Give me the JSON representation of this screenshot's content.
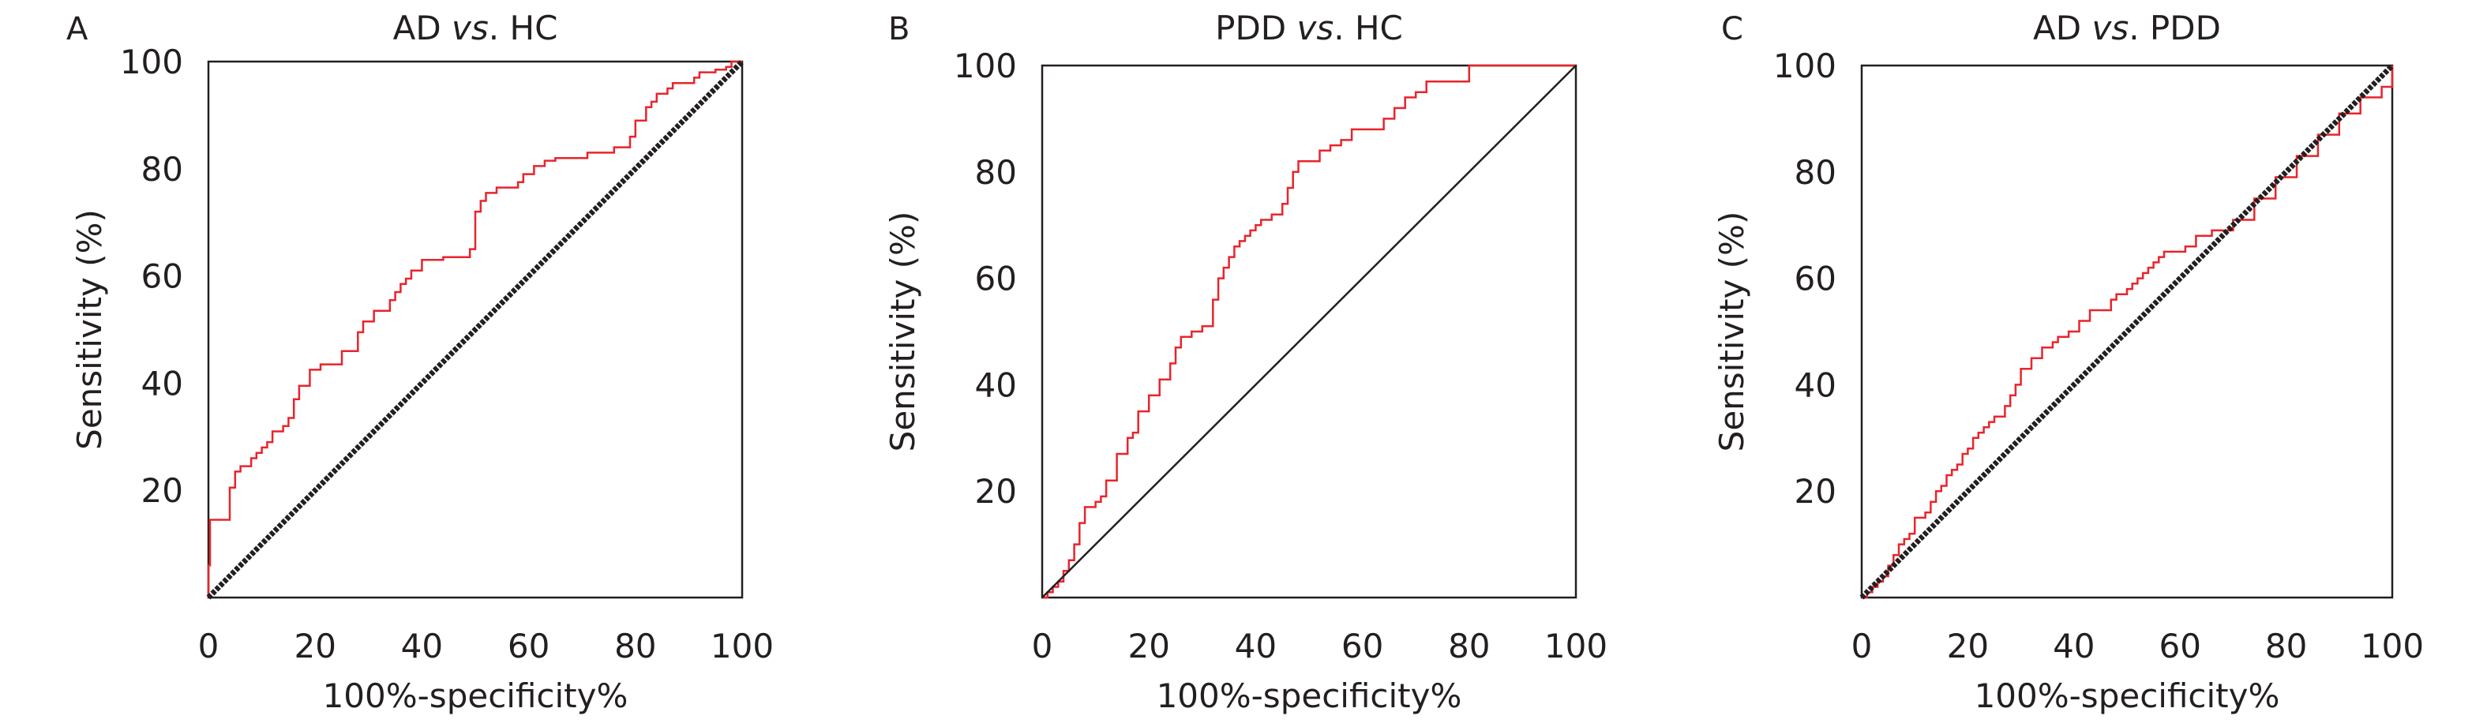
{
  "colors": {
    "roc": "#e8242c",
    "reference": "#231f20",
    "axis": "#231f20"
  },
  "chart_data": [
    {
      "type": "line",
      "panel": "A",
      "title_parts": [
        {
          "text": "AD ",
          "italic": false
        },
        {
          "text": "vs",
          "italic": true
        },
        {
          "text": ". HC",
          "italic": false
        }
      ],
      "xlabel": "100%-specificity%",
      "ylabel": "Sensitivity (%)",
      "xlim": [
        0,
        100
      ],
      "ylim": [
        0,
        100
      ],
      "xticks": [
        0,
        20,
        40,
        60,
        80,
        100
      ],
      "yticks": [
        20,
        40,
        60,
        80,
        100
      ],
      "grid": false,
      "reference_style": "dotted-thick",
      "series": [
        {
          "role": "roc",
          "x": [
            0,
            0,
            0.3,
            0.3,
            4,
            4,
            5,
            5,
            6,
            6,
            8,
            8,
            9,
            9,
            10,
            10,
            11,
            11,
            12,
            12,
            14,
            14,
            15,
            15,
            16,
            16,
            17,
            17,
            19,
            19,
            21,
            21,
            25,
            25,
            28,
            28,
            29,
            29,
            31,
            31,
            34,
            34,
            35,
            35,
            36,
            36,
            37,
            37,
            38,
            38,
            40,
            40,
            44,
            44,
            49,
            49,
            50,
            50,
            51,
            51,
            52,
            52,
            54,
            54,
            58,
            58,
            59,
            59,
            61,
            61,
            63,
            63,
            65,
            65,
            71,
            71,
            76,
            76,
            79,
            79,
            80,
            80,
            82,
            82,
            83,
            83,
            84,
            84,
            86,
            86,
            87,
            87,
            91,
            91,
            92,
            92,
            95,
            95,
            97,
            97,
            98,
            98,
            100
          ],
          "y": [
            0,
            6,
            6,
            14.5,
            14.5,
            20.5,
            20.5,
            23.5,
            23.5,
            24.5,
            24.5,
            26,
            26,
            27,
            27,
            28,
            28,
            29,
            29,
            31,
            31,
            32,
            32,
            33.5,
            33.5,
            37,
            37,
            39.5,
            39.5,
            42.5,
            42.5,
            43.5,
            43.5,
            46,
            46,
            49.5,
            49.5,
            51.5,
            51.5,
            53.5,
            53.5,
            55.5,
            55.5,
            57,
            57,
            58.5,
            58.5,
            59.5,
            59.5,
            61,
            61,
            63,
            63,
            63.5,
            63.5,
            65,
            65,
            72,
            72,
            74,
            74,
            75.5,
            75.5,
            76.5,
            76.5,
            77.5,
            77.5,
            79,
            79,
            80.5,
            80.5,
            81.5,
            81.5,
            82,
            82,
            83,
            83,
            84,
            84,
            86,
            86,
            89,
            89,
            91.5,
            91.5,
            92.5,
            92.5,
            94,
            94,
            95,
            95,
            96,
            96,
            97,
            97,
            98,
            98,
            98.5,
            98.5,
            99,
            99,
            100,
            100
          ]
        },
        {
          "role": "reference",
          "x": [
            0,
            100
          ],
          "y": [
            0,
            100
          ]
        }
      ]
    },
    {
      "type": "line",
      "panel": "B",
      "title_parts": [
        {
          "text": "PDD ",
          "italic": false
        },
        {
          "text": "vs",
          "italic": true
        },
        {
          "text": ". HC",
          "italic": false
        }
      ],
      "xlabel": "100%-specificity%",
      "ylabel": "Sensitivity (%)",
      "xlim": [
        0,
        100
      ],
      "ylim": [
        0,
        100
      ],
      "xticks": [
        0,
        20,
        40,
        60,
        80,
        100
      ],
      "yticks": [
        20,
        40,
        60,
        80,
        100
      ],
      "grid": false,
      "reference_style": "thin",
      "series": [
        {
          "role": "roc",
          "x": [
            0,
            1,
            1,
            2,
            2,
            3,
            3,
            4,
            4,
            5,
            5,
            6,
            6,
            7,
            7,
            8,
            8,
            10,
            10,
            11,
            11,
            12,
            12,
            14,
            14,
            16,
            16,
            17,
            17,
            18,
            18,
            20,
            20,
            22,
            22,
            24,
            24,
            25,
            25,
            26,
            26,
            28,
            28,
            30,
            30,
            32,
            32,
            33,
            33,
            34,
            34,
            35,
            35,
            36,
            36,
            37,
            37,
            38,
            38,
            39,
            39,
            40,
            40,
            41,
            41,
            43,
            43,
            45,
            45,
            46,
            46,
            47,
            47,
            48,
            48,
            52,
            52,
            54,
            54,
            56,
            56,
            58,
            58,
            64,
            64,
            66,
            66,
            68,
            68,
            70,
            70,
            72,
            72,
            80,
            80,
            100
          ],
          "y": [
            0,
            0,
            1,
            1,
            2,
            2,
            3,
            3,
            5,
            5,
            7,
            7,
            10,
            10,
            14,
            14,
            17,
            17,
            18,
            18,
            19,
            19,
            22,
            22,
            27,
            27,
            30,
            30,
            31,
            31,
            35,
            35,
            38,
            38,
            41,
            41,
            44,
            44,
            47,
            47,
            49,
            49,
            50,
            50,
            51,
            51,
            56,
            56,
            60,
            60,
            62,
            62,
            64,
            64,
            66,
            66,
            67,
            67,
            68,
            68,
            69,
            69,
            70,
            70,
            71,
            71,
            72,
            72,
            74,
            74,
            77,
            77,
            80,
            80,
            82,
            82,
            84,
            84,
            85,
            85,
            86,
            86,
            88,
            88,
            90,
            90,
            92,
            92,
            94,
            94,
            95,
            95,
            97,
            97,
            100,
            100
          ]
        },
        {
          "role": "reference",
          "x": [
            0,
            100
          ],
          "y": [
            0,
            100
          ]
        }
      ]
    },
    {
      "type": "line",
      "panel": "C",
      "title_parts": [
        {
          "text": "AD ",
          "italic": false
        },
        {
          "text": "vs",
          "italic": true
        },
        {
          "text": ". PDD",
          "italic": false
        }
      ],
      "xlabel": "100%-specificity%",
      "ylabel": "Sensitivity (%)",
      "xlim": [
        0,
        100
      ],
      "ylim": [
        0,
        100
      ],
      "xticks": [
        0,
        20,
        40,
        60,
        80,
        100
      ],
      "yticks": [
        20,
        40,
        60,
        80,
        100
      ],
      "grid": false,
      "reference_style": "dotted-thick",
      "series": [
        {
          "role": "roc",
          "x": [
            0,
            1,
            1,
            2,
            2,
            3,
            3,
            4,
            4,
            5,
            5,
            6,
            6,
            7,
            7,
            8,
            8,
            9,
            9,
            10,
            10,
            12,
            12,
            13,
            13,
            14,
            14,
            15,
            15,
            16,
            16,
            17,
            17,
            18,
            18,
            19,
            19,
            20,
            20,
            21,
            21,
            22,
            22,
            23,
            23,
            24,
            24,
            25,
            25,
            27,
            27,
            28,
            28,
            29,
            29,
            30,
            30,
            32,
            32,
            34,
            34,
            36,
            36,
            37,
            37,
            39,
            39,
            41,
            41,
            43,
            43,
            47,
            47,
            48,
            48,
            50,
            50,
            51,
            51,
            52,
            52,
            53,
            53,
            54,
            54,
            55,
            55,
            56,
            56,
            57,
            57,
            61,
            61,
            63,
            63,
            66,
            66,
            70,
            70,
            74,
            74,
            78,
            78,
            82,
            82,
            86,
            86,
            90,
            90,
            94,
            94,
            98,
            98,
            100,
            100
          ],
          "y": [
            0,
            0,
            1,
            1,
            2,
            2,
            3,
            3,
            4,
            4,
            6,
            6,
            8,
            8,
            10,
            10,
            11,
            11,
            12,
            12,
            15,
            15,
            16,
            16,
            18,
            18,
            20,
            20,
            21,
            21,
            23,
            23,
            24,
            24,
            25,
            25,
            27,
            27,
            28,
            28,
            30,
            30,
            31,
            31,
            32,
            32,
            33,
            33,
            34,
            34,
            36,
            36,
            38,
            38,
            40,
            40,
            43,
            43,
            45,
            45,
            47,
            47,
            48,
            48,
            49,
            49,
            50,
            50,
            52,
            52,
            54,
            54,
            56,
            56,
            57,
            57,
            58,
            58,
            59,
            59,
            60,
            60,
            61,
            61,
            62,
            62,
            63,
            63,
            64,
            64,
            65,
            65,
            66,
            66,
            68,
            68,
            69,
            69,
            71,
            71,
            75,
            75,
            79,
            79,
            83,
            83,
            87,
            87,
            91,
            91,
            94,
            94,
            96,
            96,
            100
          ]
        },
        {
          "role": "reference",
          "x": [
            0,
            100
          ],
          "y": [
            0,
            100
          ]
        }
      ]
    }
  ]
}
